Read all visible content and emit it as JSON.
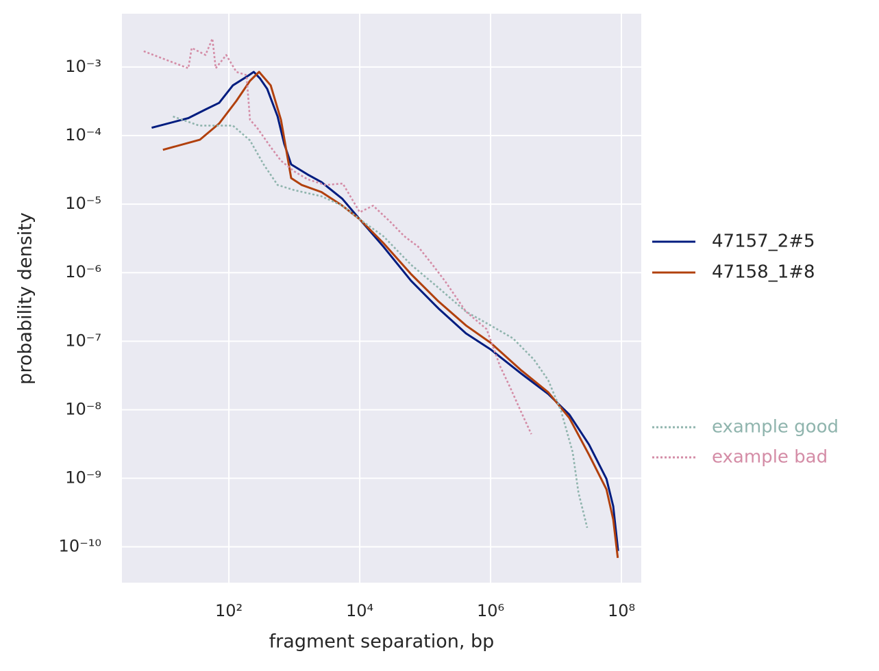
{
  "chart_data": {
    "type": "line",
    "x_label": "fragment separation, bp",
    "y_label": "probability density",
    "xscale": "log",
    "yscale": "log",
    "grid": true,
    "legend": "right",
    "xlim": [
      2.32,
      201000000.0
    ],
    "ylim": [
      3e-11,
      0.006
    ],
    "xticks": [
      {
        "value": 100,
        "label": "10²"
      },
      {
        "value": 10000,
        "label": "10⁴"
      },
      {
        "value": 1000000,
        "label": "10⁶"
      },
      {
        "value": 100000000,
        "label": "10⁸"
      }
    ],
    "yticks": [
      {
        "value": 1e-10,
        "label": "10⁻¹⁰"
      },
      {
        "value": 1e-09,
        "label": "10⁻⁹"
      },
      {
        "value": 1e-08,
        "label": "10⁻⁸"
      },
      {
        "value": 1e-07,
        "label": "10⁻⁷"
      },
      {
        "value": 1e-06,
        "label": "10⁻⁶"
      },
      {
        "value": 1e-05,
        "label": "10⁻⁵"
      },
      {
        "value": 0.0001,
        "label": "10⁻⁴"
      },
      {
        "value": 0.001,
        "label": "10⁻³"
      }
    ],
    "series": [
      {
        "name": "47157_2#5",
        "color": "#001c7f",
        "legend_text_color": "#262626",
        "dash": "solid",
        "x": [
          6.6,
          24,
          44,
          71,
          115,
          186,
          240,
          300,
          385,
          555,
          700,
          895,
          1600,
          2600,
          5400,
          10000,
          23000,
          61000,
          160000,
          420000,
          1000000,
          2900000,
          7600000,
          16000000,
          32000000,
          59000000,
          75000000,
          89000000
        ],
        "values": [
          0.00013,
          0.00018,
          0.00024,
          0.0003,
          0.00054,
          0.00072,
          0.00085,
          0.00068,
          0.00048,
          0.00019,
          7.6e-05,
          3.8e-05,
          2.7e-05,
          2.1e-05,
          1.2e-05,
          6e-06,
          2.4e-06,
          7.6e-07,
          3e-07,
          1.3e-07,
          7.6e-08,
          3.4e-08,
          1.7e-08,
          8.5e-09,
          3.1e-09,
          9.8e-10,
          3.9e-10,
          8.7e-11
        ]
      },
      {
        "name": "47158_1#8",
        "color": "#b1400d",
        "legend_text_color": "#262626",
        "dash": "solid",
        "x": [
          9.8,
          36,
          71,
          130,
          210,
          290,
          435,
          625,
          895,
          1300,
          2600,
          5400,
          10000,
          23000,
          61000,
          160000,
          420000,
          1000000,
          2900000,
          7600000,
          16000000,
          32000000,
          59000000,
          75000000,
          88000000
        ],
        "values": [
          6.2e-05,
          8.7e-05,
          0.00015,
          0.00032,
          0.00063,
          0.00085,
          0.00054,
          0.00017,
          2.4e-05,
          1.9e-05,
          1.5e-05,
          9.5e-06,
          6e-06,
          2.7e-06,
          9.5e-07,
          3.8e-07,
          1.7e-07,
          9.5e-08,
          3.8e-08,
          1.8e-08,
          7.6e-09,
          2.2e-09,
          6.9e-10,
          2.5e-10,
          6.9e-11
        ]
      },
      {
        "name": "example good",
        "color": "#8fb4ad",
        "legend_text_color": "#8fb4ad",
        "dash": "dotted",
        "x": [
          14,
          35,
          115,
          210,
          340,
          555,
          1000,
          2600,
          5400,
          10000,
          23000,
          61000,
          160000,
          420000,
          1000000,
          2200000,
          4600000,
          7600000,
          12000000,
          18000000,
          22000000,
          30000000
        ],
        "values": [
          0.00019,
          0.00014,
          0.00014,
          8.5e-05,
          3.8e-05,
          1.9e-05,
          1.6e-05,
          1.3e-05,
          9.5e-06,
          6e-06,
          3.4e-06,
          1.3e-06,
          6e-07,
          2.7e-07,
          1.7e-07,
          1.1e-07,
          5.4e-08,
          2.7e-08,
          9.5e-09,
          2.4e-09,
          6.2e-10,
          1.9e-10
        ]
      },
      {
        "name": "example bad",
        "color": "#d48ca6",
        "legend_text_color": "#d48ca6",
        "dash": "dotted",
        "x": [
          5.0,
          10.4,
          24,
          27,
          44,
          56,
          63,
          91,
          130,
          186,
          210,
          270,
          435,
          625,
          1000,
          1600,
          3000,
          5500,
          10000,
          16000,
          30000,
          48000,
          78000,
          130000,
          200000,
          420000,
          870000,
          1400000,
          2000000,
          2900000,
          4200000
        ],
        "values": [
          0.0017,
          0.0013,
          0.00096,
          0.0019,
          0.0015,
          0.0026,
          0.00096,
          0.0015,
          0.00085,
          0.00076,
          0.00017,
          0.00013,
          6.8e-05,
          4.3e-05,
          3e-05,
          2.3e-05,
          1.9e-05,
          2e-05,
          7.6e-06,
          9.5e-06,
          5.4e-06,
          3.4e-06,
          2.4e-06,
          1.3e-06,
          7.6e-07,
          2.7e-07,
          1.5e-07,
          4.3e-08,
          2.1e-08,
          9.5e-09,
          4.4e-09
        ]
      }
    ]
  }
}
